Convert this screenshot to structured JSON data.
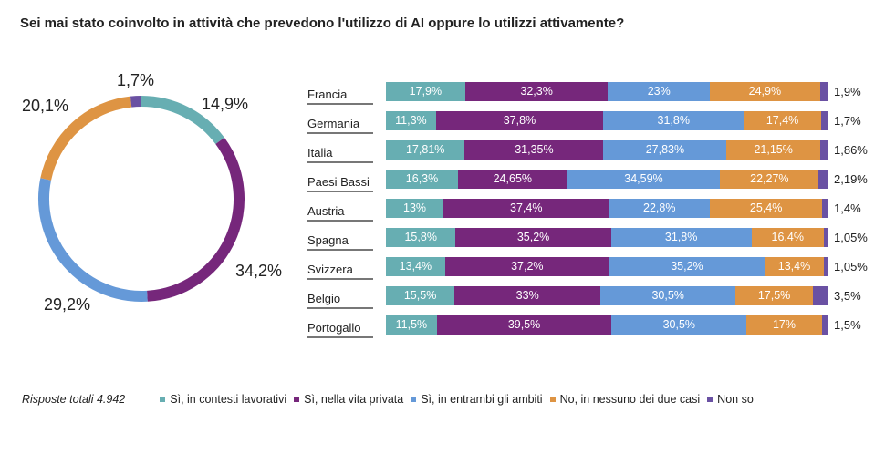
{
  "title": "Sei mai stato coinvolto in attività che prevedono l'utilizzo di AI oppure lo utilizzi attivamente?",
  "colors": [
    "#67aeb2",
    "#76277b",
    "#6599d8",
    "#de9443",
    "#6a51a3"
  ],
  "legend": {
    "total": "Risposte totali 4.942",
    "items": [
      "Sì, in contesti lavorativi",
      "Sì, nella vita privata",
      "Sì, in entrambi gli ambiti",
      "No, in nessuno dei due casi",
      "Non so"
    ]
  },
  "chart_data": [
    {
      "type": "pie",
      "donut": true,
      "values": [
        14.9,
        34.2,
        29.2,
        20.1,
        1.7
      ],
      "labels": [
        "14,9%",
        "34,2%",
        "29,2%",
        "20,1%",
        "1,7%"
      ],
      "categories": [
        "Sì, in contesti lavorativi",
        "Sì, nella vita privata",
        "Sì, in entrambi gli ambiti",
        "No, in nessuno dei due casi",
        "Non so"
      ]
    },
    {
      "type": "bar",
      "stacked": true,
      "orientation": "horizontal",
      "categories": [
        "Francia",
        "Germania",
        "Italia",
        "Paesi Bassi",
        "Austria",
        "Spagna",
        "Svizzera",
        "Belgio",
        "Portogallo"
      ],
      "series": [
        {
          "name": "Sì, in contesti lavorativi",
          "values": [
            17.9,
            11.3,
            17.81,
            16.3,
            13,
            15.8,
            13.4,
            15.5,
            11.5
          ],
          "labels": [
            "17,9%",
            "11,3%",
            "17,81%",
            "16,3%",
            "13%",
            "15,8%",
            "13,4%",
            "15,5%",
            "11,5%"
          ]
        },
        {
          "name": "Sì, nella vita privata",
          "values": [
            32.3,
            37.8,
            31.35,
            24.65,
            37.4,
            35.2,
            37.2,
            33,
            39.5
          ],
          "labels": [
            "32,3%",
            "37,8%",
            "31,35%",
            "24,65%",
            "37,4%",
            "35,2%",
            "37,2%",
            "33%",
            "39,5%"
          ]
        },
        {
          "name": "Sì, in entrambi gli ambiti",
          "values": [
            23,
            31.8,
            27.83,
            34.59,
            22.8,
            31.8,
            35.2,
            30.5,
            30.5
          ],
          "labels": [
            "23%",
            "31,8%",
            "27,83%",
            "34,59%",
            "22,8%",
            "31,8%",
            "35,2%",
            "30,5%",
            "30,5%"
          ]
        },
        {
          "name": "No, in nessuno dei due casi",
          "values": [
            24.9,
            17.4,
            21.15,
            22.27,
            25.4,
            16.4,
            13.4,
            17.5,
            17
          ],
          "labels": [
            "24,9%",
            "17,4%",
            "21,15%",
            "22,27%",
            "25,4%",
            "16,4%",
            "13,4%",
            "17,5%",
            "17%"
          ]
        },
        {
          "name": "Non so",
          "values": [
            1.9,
            1.7,
            1.86,
            2.19,
            1.4,
            1.05,
            1.05,
            3.5,
            1.5
          ],
          "labels": [
            "1,9%",
            "1,7%",
            "1,86%",
            "2,19%",
            "1,4%",
            "1,05%",
            "1,05%",
            "3,5%",
            "1,5%"
          ]
        }
      ]
    }
  ]
}
